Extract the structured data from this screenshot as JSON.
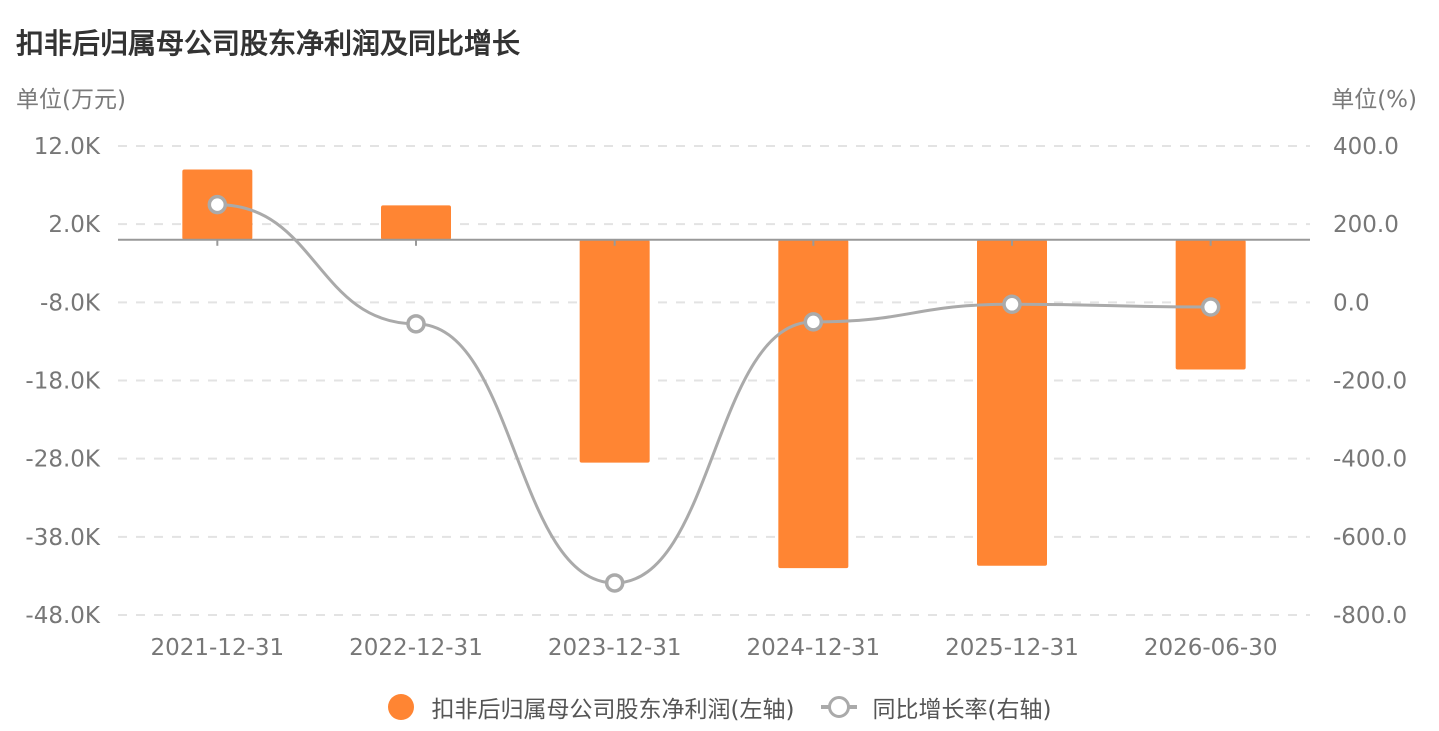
{
  "title": "扣非后归属母公司股东净利润及同比增长",
  "unit_left": "单位(万元)",
  "unit_right": "单位(%)",
  "legend": {
    "bar_label": "扣非后归属母公司股东净利润(左轴)",
    "line_label": "同比增长率(右轴)"
  },
  "colors": {
    "bar": "#ff8533",
    "line": "#aaaaaa",
    "grid": "#e3e3e3",
    "axis": "#999999",
    "tick_text": "#777777"
  },
  "chart_data": {
    "type": "bar",
    "categories": [
      "2021-12-31",
      "2022-12-31",
      "2023-12-31",
      "2024-12-31",
      "2025-12-31",
      "2026-06-30"
    ],
    "series": [
      {
        "name": "扣非后归属母公司股东净利润(左轴)",
        "type": "bar",
        "axis": "left",
        "values": [
          9000,
          4400,
          -28500,
          -42000,
          -41700,
          -16600
        ]
      },
      {
        "name": "同比增长率(右轴)",
        "type": "line",
        "axis": "right",
        "values": [
          250,
          -55,
          -718,
          -50,
          -5,
          -12
        ]
      }
    ],
    "y_left": {
      "range": [
        -48000,
        12000
      ],
      "ticks": [
        12000,
        2000,
        -8000,
        -18000,
        -28000,
        -38000,
        -48000
      ],
      "tick_labels": [
        "12.0K",
        "2.0K",
        "-8.0K",
        "-18.0K",
        "-28.0K",
        "-38.0K",
        "-48.0K"
      ]
    },
    "y_right": {
      "range": [
        -800,
        400
      ],
      "ticks": [
        400,
        200,
        0,
        -200,
        -400,
        -600,
        -800
      ],
      "tick_labels": [
        "400.0",
        "200.0",
        "0.0",
        "-200.0",
        "-400.0",
        "-600.0",
        "-800.0"
      ]
    },
    "grid": true,
    "legend_position": "bottom"
  }
}
